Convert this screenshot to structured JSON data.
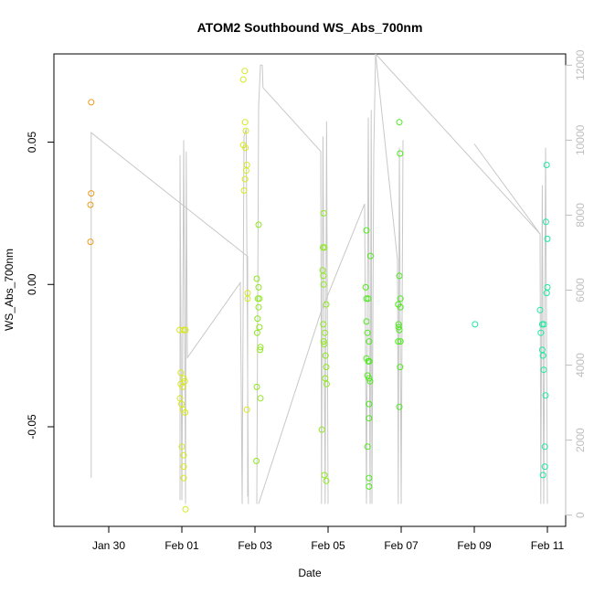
{
  "chart_data": {
    "type": "scatter",
    "title": "ATOM2 Southbound WS_Abs_700nm",
    "xlabel": "Date",
    "ylabel": "WS_Abs_700nm",
    "x_ticks": [
      "Jan 30",
      "Feb 01",
      "Feb 03",
      "Feb 05",
      "Feb 07",
      "Feb 09",
      "Feb 11"
    ],
    "x_tick_days": [
      1,
      3,
      5,
      7,
      9,
      11,
      13
    ],
    "xlim_days": [
      -0.5,
      13.5
    ],
    "y_ticks": [
      "-0.05",
      "0.00",
      "0.05"
    ],
    "y_tick_values": [
      -0.05,
      0.0,
      0.05
    ],
    "ylim": [
      -0.085,
      0.081
    ],
    "y2_ticks": [
      "0",
      "2000",
      "4000",
      "6000",
      "8000",
      "10000",
      "12000"
    ],
    "y2_tick_values": [
      0,
      2000,
      4000,
      6000,
      8000,
      10000,
      12000
    ],
    "y2lim": [
      -300,
      12300
    ],
    "grid": false,
    "series": [
      {
        "color": "#ee9a1c",
        "points": [
          [
            0.52,
            0.064
          ],
          [
            0.52,
            0.032
          ],
          [
            0.5,
            0.028
          ],
          [
            0.5,
            0.015
          ]
        ]
      },
      {
        "color": "#d7e81e",
        "points": [
          [
            2.94,
            -0.016
          ],
          [
            3.05,
            -0.016
          ],
          [
            3.1,
            -0.016
          ],
          [
            2.97,
            -0.031
          ],
          [
            3.05,
            -0.033
          ],
          [
            3.08,
            -0.034
          ],
          [
            2.97,
            -0.035
          ],
          [
            3.02,
            -0.036
          ],
          [
            2.95,
            -0.04
          ],
          [
            2.99,
            -0.042
          ],
          [
            3.03,
            -0.044
          ],
          [
            3.09,
            -0.045
          ],
          [
            3.0,
            -0.057
          ],
          [
            3.05,
            -0.06
          ],
          [
            3.05,
            -0.064
          ],
          [
            3.05,
            -0.068
          ],
          [
            3.1,
            -0.079
          ],
          [
            4.72,
            0.075
          ],
          [
            4.68,
            0.072
          ],
          [
            4.73,
            0.057
          ],
          [
            4.75,
            0.054
          ],
          [
            4.68,
            0.049
          ],
          [
            4.74,
            0.048
          ],
          [
            4.78,
            0.042
          ],
          [
            4.76,
            0.04
          ],
          [
            4.73,
            0.037
          ],
          [
            4.7,
            0.033
          ],
          [
            4.8,
            -0.003
          ],
          [
            4.8,
            -0.005
          ],
          [
            4.78,
            -0.044
          ]
        ]
      },
      {
        "color": "#8ee81e",
        "points": [
          [
            5.1,
            0.021
          ],
          [
            5.05,
            0.002
          ],
          [
            5.1,
            -0.001
          ],
          [
            5.12,
            -0.005
          ],
          [
            5.08,
            -0.005
          ],
          [
            5.1,
            -0.008
          ],
          [
            5.07,
            -0.012
          ],
          [
            5.12,
            -0.015
          ],
          [
            5.06,
            -0.017
          ],
          [
            5.15,
            -0.022
          ],
          [
            5.14,
            -0.023
          ],
          [
            5.05,
            -0.036
          ],
          [
            5.15,
            -0.04
          ],
          [
            5.04,
            -0.062
          ],
          [
            6.88,
            0.025
          ],
          [
            6.86,
            0.013
          ],
          [
            6.9,
            0.013
          ],
          [
            6.85,
            0.005
          ],
          [
            6.87,
            0.003
          ],
          [
            6.88,
            0.0
          ],
          [
            6.95,
            -0.007
          ],
          [
            6.87,
            -0.014
          ],
          [
            6.91,
            -0.017
          ],
          [
            6.88,
            -0.02
          ],
          [
            6.9,
            -0.021
          ],
          [
            6.93,
            -0.025
          ],
          [
            6.95,
            -0.029
          ],
          [
            6.92,
            -0.033
          ],
          [
            6.96,
            -0.035
          ],
          [
            6.83,
            -0.051
          ],
          [
            6.9,
            -0.067
          ],
          [
            6.95,
            -0.069
          ]
        ]
      },
      {
        "color": "#4fe81e",
        "points": [
          [
            8.05,
            0.019
          ],
          [
            8.03,
            -0.001
          ],
          [
            8.05,
            -0.005
          ],
          [
            8.1,
            -0.005
          ],
          [
            8.05,
            -0.013
          ],
          [
            8.08,
            -0.017
          ],
          [
            8.12,
            -0.02
          ],
          [
            8.05,
            -0.026
          ],
          [
            8.1,
            -0.027
          ],
          [
            8.13,
            -0.027
          ],
          [
            8.08,
            -0.032
          ],
          [
            8.12,
            -0.033
          ],
          [
            8.15,
            -0.034
          ],
          [
            8.12,
            -0.042
          ],
          [
            8.12,
            -0.047
          ],
          [
            8.08,
            -0.057
          ],
          [
            8.12,
            -0.068
          ],
          [
            8.12,
            -0.071
          ],
          [
            8.16,
            0.01
          ],
          [
            8.95,
            0.057
          ],
          [
            8.97,
            0.046
          ],
          [
            8.95,
            0.003
          ],
          [
            8.98,
            -0.005
          ],
          [
            8.92,
            -0.007
          ],
          [
            8.98,
            -0.008
          ],
          [
            8.93,
            -0.014
          ],
          [
            8.93,
            -0.015
          ],
          [
            8.95,
            -0.016
          ],
          [
            8.92,
            -0.02
          ],
          [
            8.98,
            -0.02
          ],
          [
            8.97,
            -0.029
          ],
          [
            8.95,
            -0.043
          ]
        ]
      },
      {
        "color": "#1ee8a0",
        "points": [
          [
            11.02,
            -0.014
          ],
          [
            12.8,
            -0.009
          ],
          [
            12.86,
            -0.014
          ],
          [
            12.9,
            -0.014
          ],
          [
            12.82,
            -0.017
          ],
          [
            12.86,
            -0.023
          ],
          [
            12.88,
            -0.025
          ],
          [
            12.9,
            -0.03
          ],
          [
            12.95,
            -0.039
          ],
          [
            12.93,
            -0.057
          ],
          [
            12.93,
            -0.064
          ],
          [
            12.88,
            -0.067
          ],
          [
            12.98,
            0.042
          ],
          [
            12.96,
            0.022
          ],
          [
            13.0,
            0.016
          ],
          [
            13.0,
            -0.001
          ],
          [
            12.98,
            -0.003
          ]
        ]
      }
    ],
    "altitude_series": {
      "color": "#c8c8c8",
      "axis": "right",
      "segments": [
        [
          [
            0.52,
            1000
          ],
          [
            0.52,
            10200
          ],
          [
            4.8,
            6900
          ],
          [
            4.8,
            500
          ]
        ],
        [
          [
            2.95,
            400
          ],
          [
            2.95,
            9600
          ],
          [
            3.0,
            400
          ],
          [
            3.05,
            10000
          ],
          [
            3.1,
            300
          ],
          [
            3.12,
            9700
          ],
          [
            3.15,
            4200
          ],
          [
            4.6,
            6200
          ],
          [
            4.65,
            300
          ],
          [
            4.7,
            10100
          ],
          [
            4.76,
            10300
          ],
          [
            4.82,
            300
          ]
        ],
        [
          [
            5.05,
            300
          ],
          [
            5.1,
            10900
          ],
          [
            5.15,
            12000
          ],
          [
            5.2,
            12000
          ],
          [
            5.22,
            11400
          ],
          [
            6.8,
            9700
          ],
          [
            6.82,
            300
          ],
          [
            6.86,
            10100
          ],
          [
            6.92,
            300
          ],
          [
            6.96,
            10500
          ],
          [
            7.0,
            300
          ]
        ],
        [
          [
            5.1,
            300
          ],
          [
            6.8,
            5400
          ],
          [
            8.0,
            8300
          ],
          [
            8.05,
            300
          ],
          [
            8.1,
            10600
          ],
          [
            8.15,
            300
          ],
          [
            8.18,
            10800
          ],
          [
            8.2,
            300
          ],
          [
            8.25,
            9700
          ],
          [
            8.3,
            12300
          ],
          [
            8.9,
            6800
          ],
          [
            8.92,
            300
          ],
          [
            8.95,
            9800
          ],
          [
            9.0,
            300
          ],
          [
            9.05,
            10000
          ]
        ],
        [
          [
            8.3,
            12300
          ],
          [
            12.8,
            7500
          ],
          [
            12.82,
            300
          ],
          [
            12.86,
            8800
          ],
          [
            12.9,
            300
          ],
          [
            12.95,
            9800
          ],
          [
            13.0,
            300
          ]
        ],
        [
          [
            11.0,
            9900
          ],
          [
            12.8,
            7500
          ]
        ]
      ]
    }
  }
}
